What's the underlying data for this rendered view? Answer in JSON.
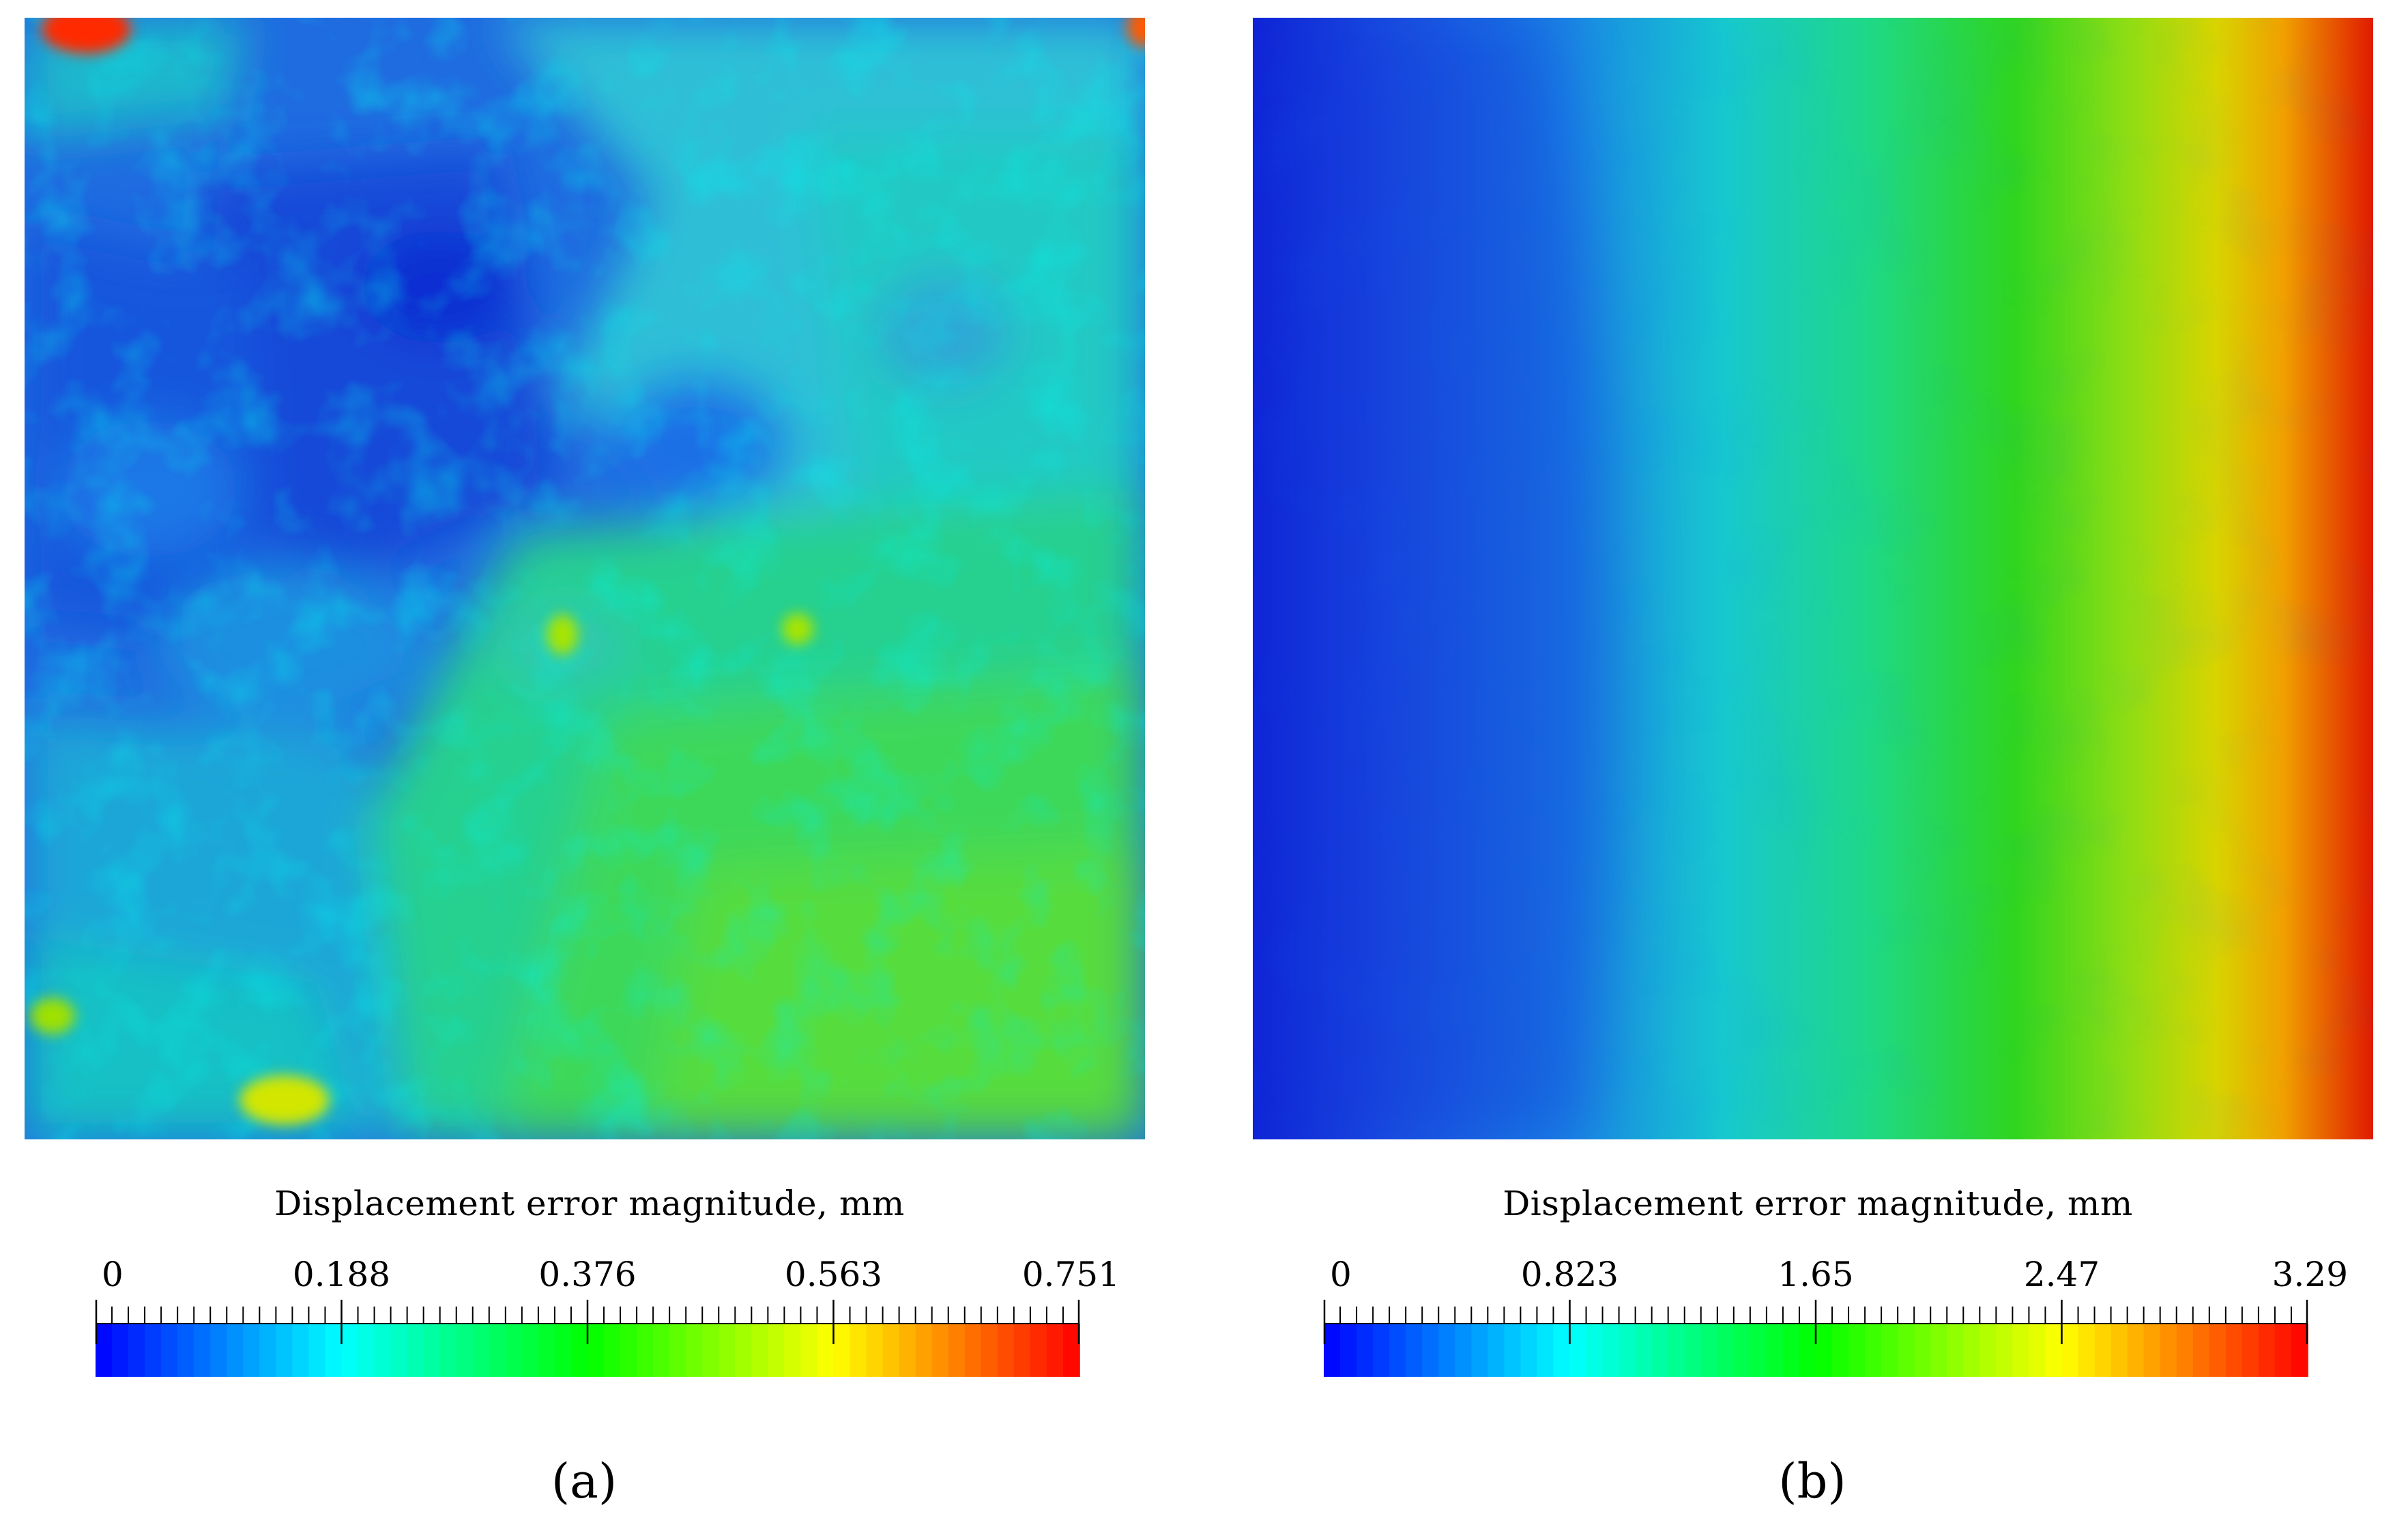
{
  "chart_data": [
    {
      "type": "heatmap",
      "panel_label": "(a)",
      "colorbar": {
        "title": "Displacement error magnitude, mm",
        "min": 0,
        "max": 0.751,
        "tick_labels": [
          "0",
          "0.188",
          "0.376",
          "0.563",
          "0.751"
        ],
        "colormap": [
          "#0000ff",
          "#00ffff",
          "#00ff00",
          "#ffff00",
          "#ff0000"
        ],
        "minor_ticks": 59
      },
      "field": {
        "description_free": true,
        "dominant_low_region": "upper-left",
        "dominant_high_region": "lower-right",
        "typical_range": [
          0.05,
          0.45
        ],
        "hotspots": [
          {
            "x_frac": 0.05,
            "y_frac": 0.01,
            "value": 0.72
          },
          {
            "x_frac": 0.99,
            "y_frac": 0.01,
            "value": 0.65
          },
          {
            "x_frac": 0.23,
            "y_frac": 0.95,
            "value": 0.52
          }
        ]
      }
    },
    {
      "type": "heatmap",
      "panel_label": "(b)",
      "colorbar": {
        "title": "Displacement error magnitude, mm",
        "min": 0,
        "max": 3.29,
        "tick_labels": [
          "0",
          "0.823",
          "1.65",
          "2.47",
          "3.29"
        ],
        "colormap": [
          "#0000ff",
          "#00ffff",
          "#00ff00",
          "#ffff00",
          "#ff0000"
        ],
        "minor_ticks": 59
      },
      "field": {
        "gradient_direction": "left-to-right",
        "left_edge_value": 0.15,
        "right_edge_value": 3.2
      }
    }
  ]
}
